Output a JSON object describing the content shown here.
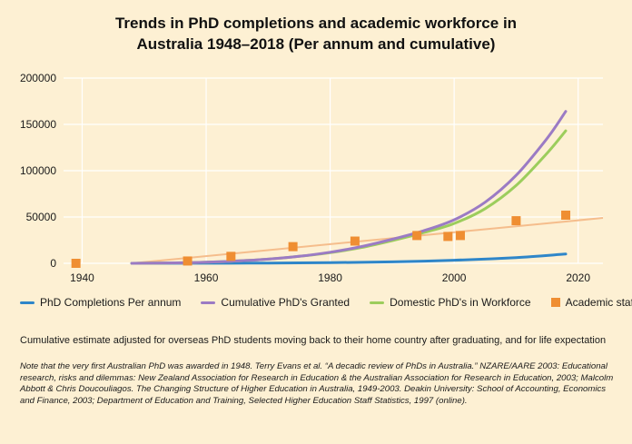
{
  "title": {
    "line1": "Trends in PhD completions and academic workforce in",
    "line2": "Australia 1948–2018 (Per annum and cumulative)"
  },
  "chart_data": {
    "type": "line",
    "xlim": [
      1937,
      2024
    ],
    "ylim": [
      0,
      200000
    ],
    "x_ticks": [
      1940,
      1960,
      1980,
      2000,
      2020
    ],
    "y_ticks": [
      0,
      50000,
      100000,
      150000,
      200000
    ],
    "x_tick_labels": [
      "1940",
      "1960",
      "1980",
      "2000",
      "2020"
    ],
    "y_tick_labels": [
      "0",
      "50000",
      "100000",
      "150000",
      "200000"
    ],
    "grid": true,
    "legend_position": "bottom",
    "series": [
      {
        "name": "PhD Completions Per annum",
        "kind": "line",
        "color": "#2e86c9",
        "x": [
          1948,
          1960,
          1970,
          1980,
          1990,
          2000,
          2010,
          2018
        ],
        "y": [
          0,
          100,
          300,
          700,
          1600,
          3300,
          6200,
          10000
        ]
      },
      {
        "name": "Cumulative PhD's Granted",
        "kind": "line",
        "color": "#9b7bc4",
        "x": [
          1948,
          1955,
          1960,
          1965,
          1970,
          1975,
          1980,
          1985,
          1990,
          1995,
          2000,
          2005,
          2010,
          2015,
          2018
        ],
        "y": [
          0,
          500,
          1200,
          2500,
          4500,
          7500,
          12000,
          18000,
          26000,
          35000,
          47000,
          66000,
          95000,
          135000,
          164000
        ]
      },
      {
        "name": "Domestic PhD's in Workforce",
        "kind": "line",
        "color": "#9ccd5c",
        "x": [
          1948,
          1955,
          1960,
          1965,
          1970,
          1975,
          1980,
          1985,
          1990,
          1995,
          2000,
          2005,
          2010,
          2015,
          2018
        ],
        "y": [
          0,
          500,
          1200,
          2500,
          4500,
          7500,
          11500,
          17000,
          24500,
          33000,
          43000,
          59000,
          84000,
          119000,
          143000
        ]
      },
      {
        "name": "Academic staff trend",
        "kind": "trendline",
        "color": "#f5bd8c",
        "x": [
          1948,
          2024
        ],
        "y": [
          0,
          49000
        ]
      },
      {
        "name": "Academic staff",
        "kind": "scatter",
        "color": "#ef8e32",
        "x": [
          1939,
          1957,
          1964,
          1974,
          1984,
          1994,
          1999,
          2001,
          2010,
          2018
        ],
        "y": [
          0,
          2500,
          7500,
          18000,
          24000,
          30000,
          29000,
          30000,
          46000,
          52000
        ]
      }
    ]
  },
  "legend": [
    {
      "label": "PhD Completions Per annum",
      "color": "#2e86c9",
      "kind": "line"
    },
    {
      "label": "Cumulative PhD's Granted",
      "color": "#9b7bc4",
      "kind": "line"
    },
    {
      "label": "Domestic PhD's in Workforce",
      "color": "#9ccd5c",
      "kind": "line"
    },
    {
      "label": "Academic staff",
      "color": "#ef8e32",
      "kind": "marker"
    }
  ],
  "caption": "Cumulative estimate adjusted for overseas PhD students moving back to their home country after graduating, and for life expectation",
  "note": "Note that the very first Australian PhD was awarded in 1948. Terry Evans et al. “A decadic review of PhDs in Australia.” NZARE/AARE 2003: Educational research, risks and dilemmas: New Zealand Association for Research in Education & the Australian Association for Research in Education, 2003; Malcolm Abbott & Chris Doucouliagos. The Changing Structure of Higher Education in Australia, 1949-2003. Deakin University: School of Accounting, Economics and Finance, 2003; Department of Education and Training, Selected Higher Education Staff Statistics, 1997 (online)."
}
